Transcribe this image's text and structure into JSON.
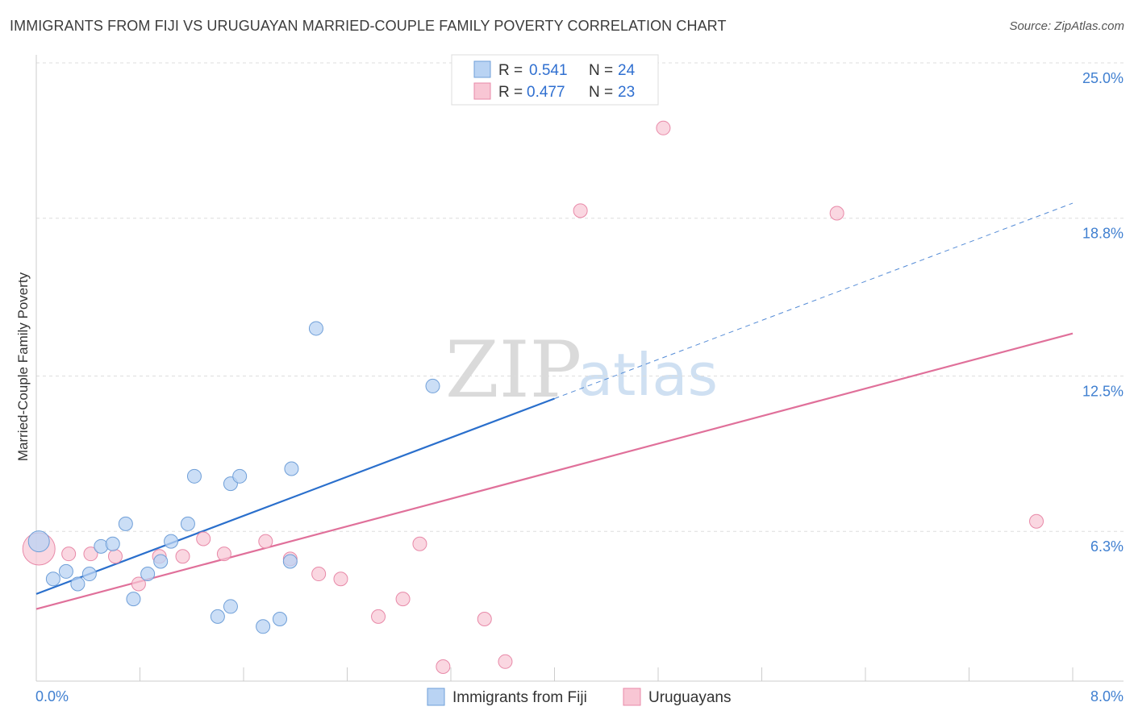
{
  "title": "IMMIGRANTS FROM FIJI VS URUGUAYAN MARRIED-COUPLE FAMILY POVERTY CORRELATION CHART",
  "source": "Source: ZipAtlas.com",
  "watermark": {
    "zip": "ZIP",
    "atlas": "atlas"
  },
  "colors": {
    "fiji_fill": "#b9d3f3",
    "fiji_stroke": "#6f9fd8",
    "fiji_line": "#2a6fcc",
    "uru_fill": "#f8c6d4",
    "uru_stroke": "#e889a8",
    "uru_line": "#e0709a",
    "tick_text": "#3f7fd0",
    "grid": "#dddddd"
  },
  "legend": {
    "rows": [
      {
        "r_label": "R =",
        "r_value": "0.541",
        "n_label": "N =",
        "n_value": "24"
      },
      {
        "r_label": "R =",
        "r_value": "0.477",
        "n_label": "N =",
        "n_value": "23"
      }
    ]
  },
  "chart_data": {
    "type": "scatter",
    "title": "IMMIGRANTS FROM FIJI VS URUGUAYAN MARRIED-COUPLE FAMILY POVERTY CORRELATION CHART",
    "xlabel": "",
    "ylabel": "Married-Couple Family Poverty",
    "xlim": [
      0,
      8.0
    ],
    "ylim": [
      0,
      25.0
    ],
    "x_tick_labels": [
      "0.0%",
      "8.0%"
    ],
    "y_ticks": [
      6.3,
      12.5,
      18.8,
      25.0
    ],
    "y_tick_labels": [
      "6.3%",
      "12.5%",
      "18.8%",
      "25.0%"
    ],
    "series": [
      {
        "name": "Immigrants from Fiji",
        "points": [
          [
            0.02,
            5.9
          ],
          [
            0.13,
            4.4
          ],
          [
            0.23,
            4.7
          ],
          [
            0.32,
            4.2
          ],
          [
            0.41,
            4.6
          ],
          [
            0.5,
            5.7
          ],
          [
            0.59,
            5.8
          ],
          [
            0.69,
            6.6
          ],
          [
            0.75,
            3.6
          ],
          [
            0.86,
            4.6
          ],
          [
            0.96,
            5.1
          ],
          [
            1.04,
            5.9
          ],
          [
            1.17,
            6.6
          ],
          [
            1.22,
            8.5
          ],
          [
            1.5,
            8.2
          ],
          [
            1.4,
            2.9
          ],
          [
            1.5,
            3.3
          ],
          [
            1.75,
            2.5
          ],
          [
            1.88,
            2.8
          ],
          [
            1.96,
            5.1
          ],
          [
            1.57,
            8.5
          ],
          [
            1.97,
            8.8
          ],
          [
            2.16,
            14.4
          ],
          [
            3.06,
            12.1
          ]
        ],
        "trend": {
          "x": [
            0.0,
            4.0
          ],
          "y": [
            3.8,
            11.6
          ]
        },
        "trend_dashed": {
          "x": [
            4.0,
            8.0
          ],
          "y": [
            11.6,
            19.4
          ]
        }
      },
      {
        "name": "Uruguayans",
        "points": [
          [
            0.02,
            5.6
          ],
          [
            0.25,
            5.4
          ],
          [
            0.42,
            5.4
          ],
          [
            0.61,
            5.3
          ],
          [
            0.79,
            4.2
          ],
          [
            0.95,
            5.3
          ],
          [
            1.13,
            5.3
          ],
          [
            1.29,
            6.0
          ],
          [
            1.45,
            5.4
          ],
          [
            1.77,
            5.9
          ],
          [
            1.96,
            5.2
          ],
          [
            2.18,
            4.6
          ],
          [
            2.35,
            4.4
          ],
          [
            2.64,
            2.9
          ],
          [
            2.83,
            3.6
          ],
          [
            2.96,
            5.8
          ],
          [
            3.14,
            0.9
          ],
          [
            3.46,
            2.8
          ],
          [
            3.62,
            1.1
          ],
          [
            4.2,
            19.1
          ],
          [
            4.84,
            22.4
          ],
          [
            6.18,
            19.0
          ],
          [
            7.72,
            6.7
          ]
        ],
        "trend": {
          "x": [
            0.0,
            8.0
          ],
          "y": [
            3.2,
            14.2
          ]
        }
      }
    ],
    "legend_position": "top-center"
  }
}
